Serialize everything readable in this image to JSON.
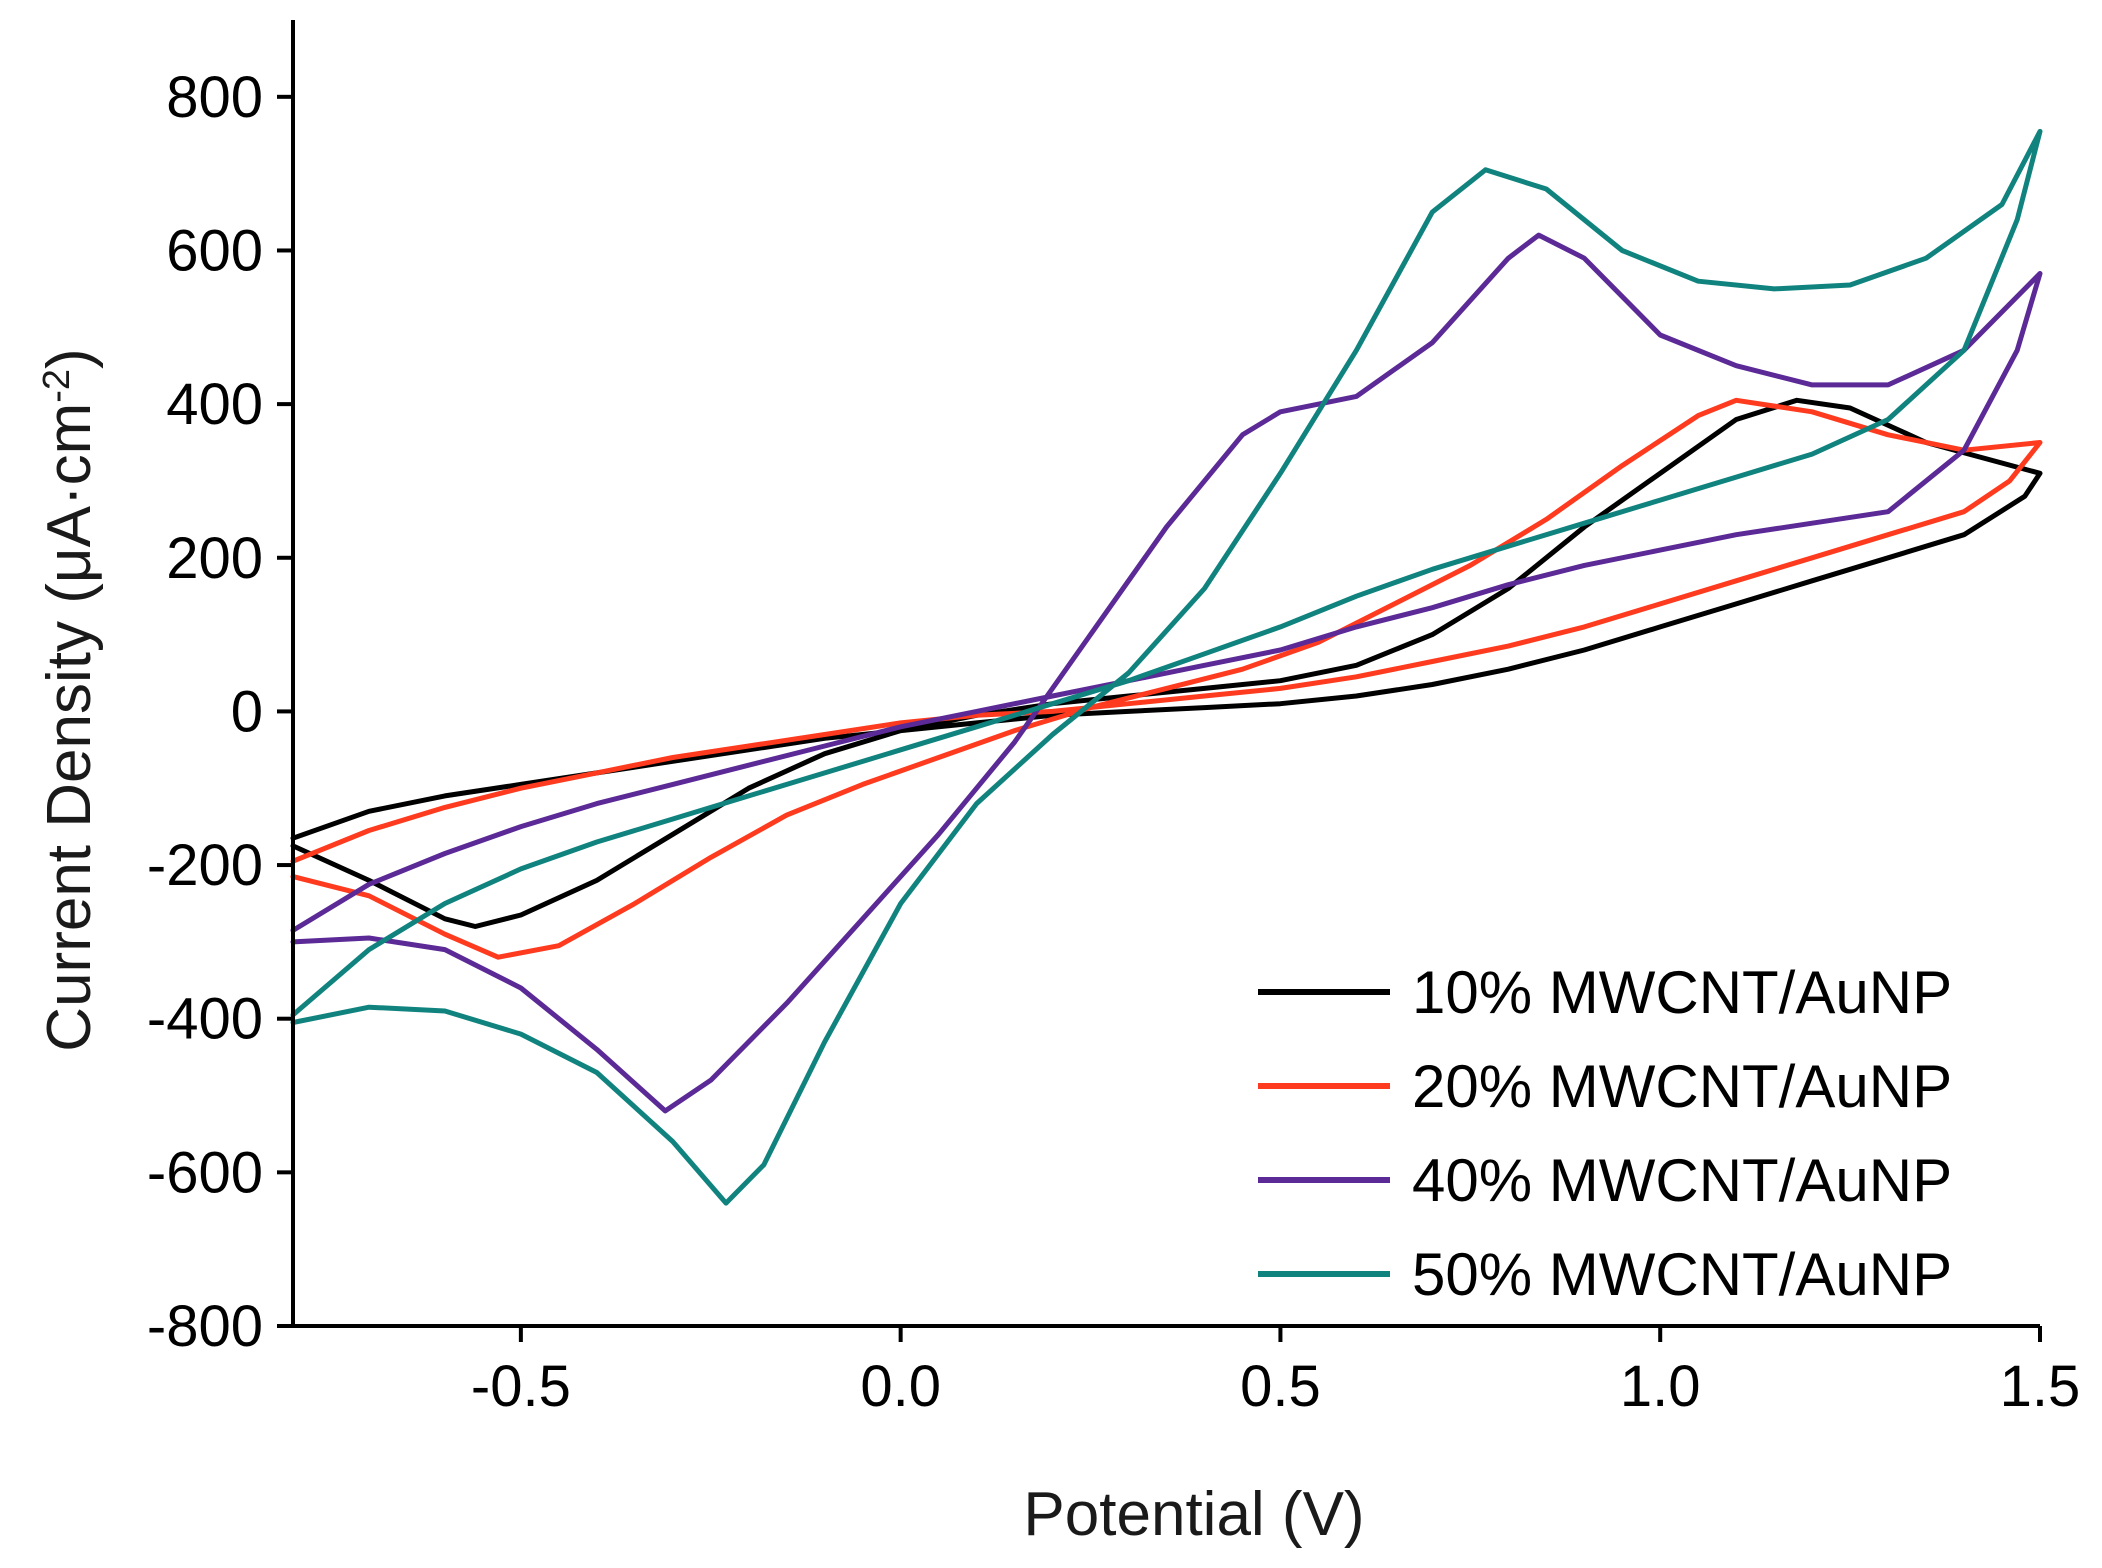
{
  "chart_data": {
    "type": "line",
    "title": "",
    "xlabel": "Potential (V)",
    "ylabel_main": "Current Density (μA·cm",
    "ylabel_sup": "-2",
    "ylabel_close": ")",
    "xlim": [
      -0.8,
      1.5
    ],
    "ylim": [
      -800,
      900
    ],
    "xticks": [
      -0.5,
      0.0,
      0.5,
      1.0,
      1.5
    ],
    "xtick_labels": [
      "-0.5",
      "0.0",
      "0.5",
      "1.0",
      "1.5"
    ],
    "yticks": [
      -800,
      -600,
      -400,
      -200,
      0,
      200,
      400,
      600,
      800
    ],
    "ytick_labels": [
      "-800",
      "-600",
      "-400",
      "-200",
      "0",
      "200",
      "400",
      "600",
      "800"
    ],
    "legend_position": "bottom-right",
    "series": [
      {
        "name": "10% MWCNT/AuNP",
        "color": "#000000",
        "points": [
          [
            -0.8,
            -175
          ],
          [
            -0.7,
            -220
          ],
          [
            -0.6,
            -270
          ],
          [
            -0.56,
            -280
          ],
          [
            -0.5,
            -265
          ],
          [
            -0.4,
            -220
          ],
          [
            -0.3,
            -160
          ],
          [
            -0.2,
            -100
          ],
          [
            -0.1,
            -55
          ],
          [
            0.0,
            -25
          ],
          [
            0.1,
            -5
          ],
          [
            0.2,
            10
          ],
          [
            0.3,
            20
          ],
          [
            0.4,
            30
          ],
          [
            0.5,
            40
          ],
          [
            0.6,
            60
          ],
          [
            0.7,
            100
          ],
          [
            0.8,
            160
          ],
          [
            0.9,
            240
          ],
          [
            1.0,
            310
          ],
          [
            1.1,
            380
          ],
          [
            1.18,
            405
          ],
          [
            1.25,
            395
          ],
          [
            1.35,
            350
          ],
          [
            1.5,
            310
          ],
          [
            1.48,
            280
          ],
          [
            1.4,
            230
          ],
          [
            1.3,
            200
          ],
          [
            1.2,
            170
          ],
          [
            1.1,
            140
          ],
          [
            1.0,
            110
          ],
          [
            0.9,
            80
          ],
          [
            0.8,
            55
          ],
          [
            0.7,
            35
          ],
          [
            0.6,
            20
          ],
          [
            0.5,
            10
          ],
          [
            0.4,
            5
          ],
          [
            0.3,
            0
          ],
          [
            0.2,
            -5
          ],
          [
            0.1,
            -15
          ],
          [
            0.0,
            -25
          ],
          [
            -0.1,
            -35
          ],
          [
            -0.2,
            -50
          ],
          [
            -0.3,
            -65
          ],
          [
            -0.4,
            -80
          ],
          [
            -0.5,
            -95
          ],
          [
            -0.6,
            -110
          ],
          [
            -0.7,
            -130
          ],
          [
            -0.8,
            -165
          ]
        ]
      },
      {
        "name": "20% MWCNT/AuNP",
        "color": "#ff3b1f",
        "points": [
          [
            -0.8,
            -215
          ],
          [
            -0.7,
            -240
          ],
          [
            -0.6,
            -290
          ],
          [
            -0.53,
            -320
          ],
          [
            -0.45,
            -305
          ],
          [
            -0.35,
            -250
          ],
          [
            -0.25,
            -190
          ],
          [
            -0.15,
            -135
          ],
          [
            -0.05,
            -95
          ],
          [
            0.05,
            -60
          ],
          [
            0.15,
            -25
          ],
          [
            0.25,
            5
          ],
          [
            0.35,
            30
          ],
          [
            0.45,
            55
          ],
          [
            0.55,
            90
          ],
          [
            0.65,
            140
          ],
          [
            0.75,
            190
          ],
          [
            0.85,
            250
          ],
          [
            0.95,
            320
          ],
          [
            1.05,
            385
          ],
          [
            1.1,
            405
          ],
          [
            1.2,
            390
          ],
          [
            1.3,
            360
          ],
          [
            1.4,
            340
          ],
          [
            1.5,
            350
          ],
          [
            1.46,
            300
          ],
          [
            1.4,
            260
          ],
          [
            1.3,
            230
          ],
          [
            1.2,
            200
          ],
          [
            1.1,
            170
          ],
          [
            1.0,
            140
          ],
          [
            0.9,
            110
          ],
          [
            0.8,
            85
          ],
          [
            0.7,
            65
          ],
          [
            0.6,
            45
          ],
          [
            0.5,
            30
          ],
          [
            0.4,
            20
          ],
          [
            0.3,
            10
          ],
          [
            0.2,
            0
          ],
          [
            0.1,
            -5
          ],
          [
            0.0,
            -15
          ],
          [
            -0.1,
            -30
          ],
          [
            -0.2,
            -45
          ],
          [
            -0.3,
            -60
          ],
          [
            -0.4,
            -80
          ],
          [
            -0.5,
            -100
          ],
          [
            -0.6,
            -125
          ],
          [
            -0.7,
            -155
          ],
          [
            -0.8,
            -195
          ]
        ]
      },
      {
        "name": "40% MWCNT/AuNP",
        "color": "#5b2a96",
        "points": [
          [
            -0.8,
            -300
          ],
          [
            -0.7,
            -295
          ],
          [
            -0.6,
            -310
          ],
          [
            -0.5,
            -360
          ],
          [
            -0.4,
            -440
          ],
          [
            -0.31,
            -520
          ],
          [
            -0.25,
            -480
          ],
          [
            -0.15,
            -380
          ],
          [
            -0.05,
            -270
          ],
          [
            0.05,
            -160
          ],
          [
            0.15,
            -40
          ],
          [
            0.25,
            100
          ],
          [
            0.35,
            240
          ],
          [
            0.45,
            360
          ],
          [
            0.5,
            390
          ],
          [
            0.6,
            410
          ],
          [
            0.7,
            480
          ],
          [
            0.8,
            590
          ],
          [
            0.84,
            620
          ],
          [
            0.9,
            590
          ],
          [
            1.0,
            490
          ],
          [
            1.1,
            450
          ],
          [
            1.2,
            425
          ],
          [
            1.3,
            425
          ],
          [
            1.4,
            470
          ],
          [
            1.5,
            570
          ],
          [
            1.47,
            470
          ],
          [
            1.4,
            340
          ],
          [
            1.3,
            260
          ],
          [
            1.2,
            245
          ],
          [
            1.1,
            230
          ],
          [
            1.0,
            210
          ],
          [
            0.9,
            190
          ],
          [
            0.8,
            165
          ],
          [
            0.7,
            135
          ],
          [
            0.6,
            110
          ],
          [
            0.5,
            80
          ],
          [
            0.4,
            60
          ],
          [
            0.3,
            40
          ],
          [
            0.2,
            20
          ],
          [
            0.1,
            0
          ],
          [
            0.0,
            -20
          ],
          [
            -0.1,
            -45
          ],
          [
            -0.2,
            -70
          ],
          [
            -0.3,
            -95
          ],
          [
            -0.4,
            -120
          ],
          [
            -0.5,
            -150
          ],
          [
            -0.6,
            -185
          ],
          [
            -0.7,
            -225
          ],
          [
            -0.8,
            -285
          ]
        ]
      },
      {
        "name": "50% MWCNT/AuNP",
        "color": "#10837f",
        "points": [
          [
            -0.8,
            -405
          ],
          [
            -0.7,
            -385
          ],
          [
            -0.6,
            -390
          ],
          [
            -0.5,
            -420
          ],
          [
            -0.4,
            -470
          ],
          [
            -0.3,
            -560
          ],
          [
            -0.23,
            -640
          ],
          [
            -0.18,
            -590
          ],
          [
            -0.1,
            -430
          ],
          [
            0.0,
            -250
          ],
          [
            0.1,
            -120
          ],
          [
            0.2,
            -30
          ],
          [
            0.3,
            50
          ],
          [
            0.4,
            160
          ],
          [
            0.5,
            310
          ],
          [
            0.6,
            470
          ],
          [
            0.7,
            650
          ],
          [
            0.77,
            705
          ],
          [
            0.85,
            680
          ],
          [
            0.95,
            600
          ],
          [
            1.05,
            560
          ],
          [
            1.15,
            550
          ],
          [
            1.25,
            555
          ],
          [
            1.35,
            590
          ],
          [
            1.45,
            660
          ],
          [
            1.5,
            755
          ],
          [
            1.47,
            640
          ],
          [
            1.4,
            470
          ],
          [
            1.3,
            380
          ],
          [
            1.2,
            335
          ],
          [
            1.1,
            305
          ],
          [
            1.0,
            275
          ],
          [
            0.9,
            245
          ],
          [
            0.8,
            215
          ],
          [
            0.7,
            185
          ],
          [
            0.6,
            150
          ],
          [
            0.5,
            110
          ],
          [
            0.4,
            75
          ],
          [
            0.3,
            40
          ],
          [
            0.2,
            10
          ],
          [
            0.1,
            -20
          ],
          [
            0.0,
            -50
          ],
          [
            -0.1,
            -80
          ],
          [
            -0.2,
            -110
          ],
          [
            -0.3,
            -140
          ],
          [
            -0.4,
            -170
          ],
          [
            -0.5,
            -205
          ],
          [
            -0.6,
            -250
          ],
          [
            -0.7,
            -310
          ],
          [
            -0.8,
            -395
          ]
        ]
      }
    ]
  }
}
